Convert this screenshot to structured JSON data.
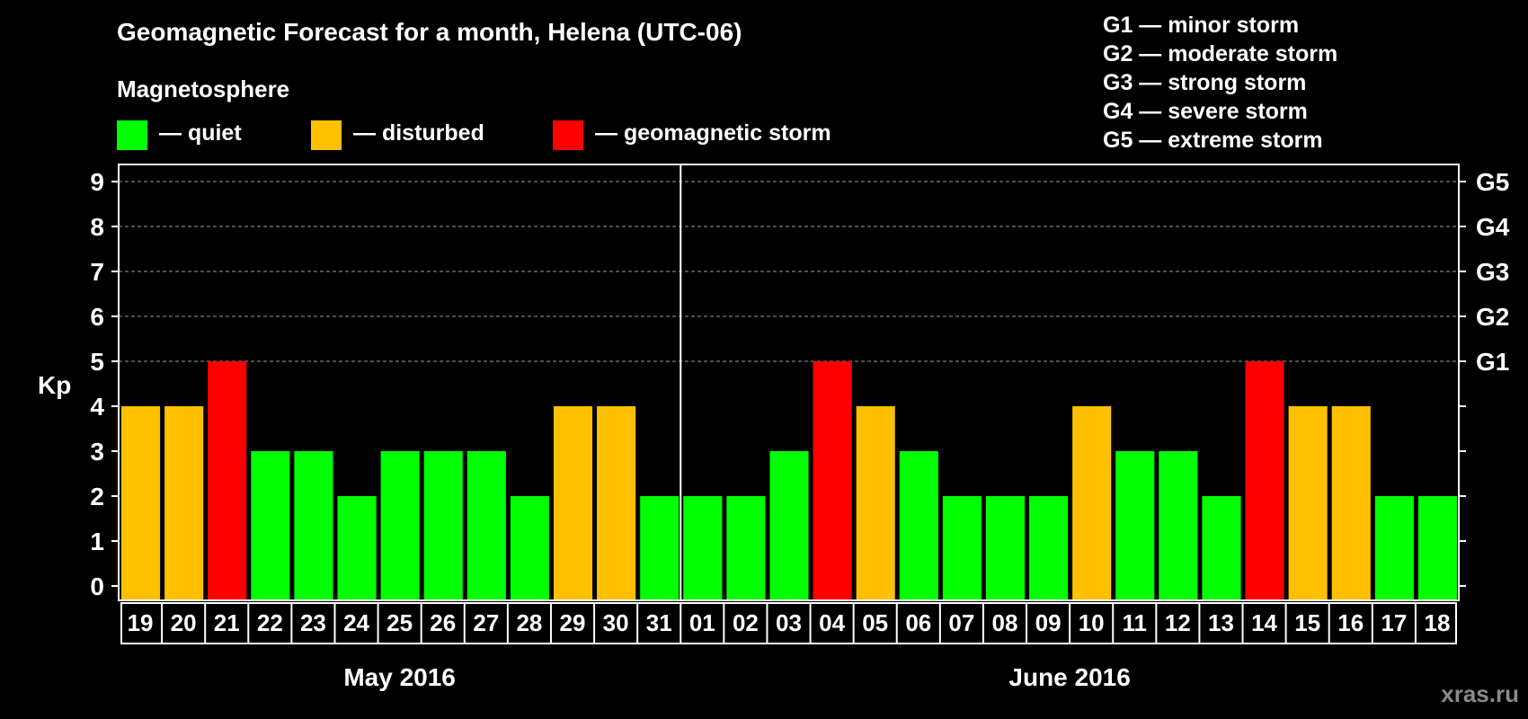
{
  "title": "Geomagnetic Forecast for a month, Helena (UTC-06)",
  "legend": {
    "heading": "Magnetosphere",
    "items": [
      {
        "label": "— quiet",
        "color": "#00ff00"
      },
      {
        "label": "— disturbed",
        "color": "#ffc000"
      },
      {
        "label": "— geomagnetic storm",
        "color": "#ff0000"
      }
    ]
  },
  "g_scale": [
    "G1 — minor storm",
    "G2 — moderate storm",
    "G3 — strong storm",
    "G4 — severe storm",
    "G5 — extreme storm"
  ],
  "footer": "xras.ru",
  "chart_data": {
    "type": "bar",
    "title": "Geomagnetic Forecast for a month, Helena (UTC-06)",
    "ylabel": "Kp",
    "xlabel": "",
    "ylim": [
      0,
      9
    ],
    "y_ticks": [
      "0",
      "1",
      "2",
      "3",
      "4",
      "5",
      "6",
      "7",
      "8",
      "9"
    ],
    "right_axis_labels": [
      {
        "value": 5,
        "label": "G1"
      },
      {
        "value": 6,
        "label": "G2"
      },
      {
        "value": 7,
        "label": "G3"
      },
      {
        "value": 8,
        "label": "G4"
      },
      {
        "value": 9,
        "label": "G5"
      }
    ],
    "grid": "horizontal dashed at 5-9",
    "categories": [
      "19",
      "20",
      "21",
      "22",
      "23",
      "24",
      "25",
      "26",
      "27",
      "28",
      "29",
      "30",
      "31",
      "01",
      "02",
      "03",
      "04",
      "05",
      "06",
      "07",
      "08",
      "09",
      "10",
      "11",
      "12",
      "13",
      "14",
      "15",
      "16",
      "17",
      "18"
    ],
    "values": [
      4,
      4,
      5,
      3,
      3,
      2,
      3,
      3,
      3,
      2,
      4,
      4,
      2,
      2,
      2,
      3,
      5,
      4,
      3,
      2,
      2,
      2,
      4,
      3,
      3,
      2,
      5,
      4,
      4,
      2,
      2
    ],
    "months": [
      {
        "label": "May 2016",
        "count": 13
      },
      {
        "label": "June 2016",
        "count": 18
      }
    ],
    "color_rule": {
      "quiet": "#00ff00",
      "disturbed": "#ffc000",
      "storm": "#ff0000"
    }
  }
}
